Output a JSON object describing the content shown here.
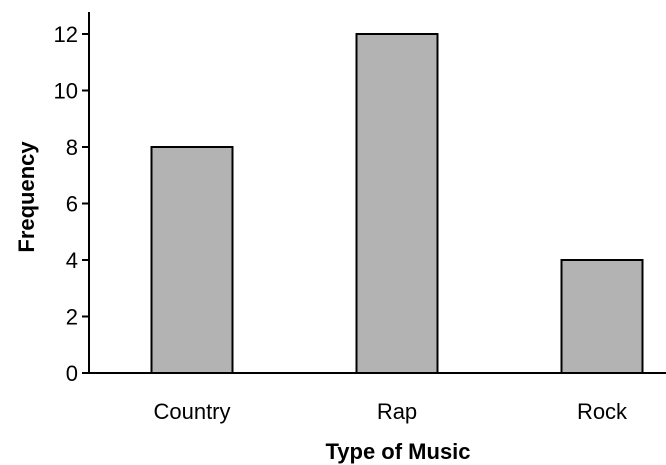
{
  "chart_data": {
    "type": "bar",
    "categories": [
      "Country",
      "Rap",
      "Rock"
    ],
    "values": [
      8,
      12,
      4
    ],
    "title": "",
    "xlabel": "Type of Music",
    "ylabel": "Frequency",
    "ylim": [
      0,
      12
    ],
    "y_ticks": [
      "0",
      "2",
      "4",
      "6",
      "8",
      "10",
      "12"
    ],
    "grid": false,
    "legend": "none",
    "colors": {
      "bar_fill": "#b3b3b3",
      "bar_stroke": "#000000",
      "axis": "#000000",
      "text": "#000000",
      "background": "#ffffff"
    }
  }
}
